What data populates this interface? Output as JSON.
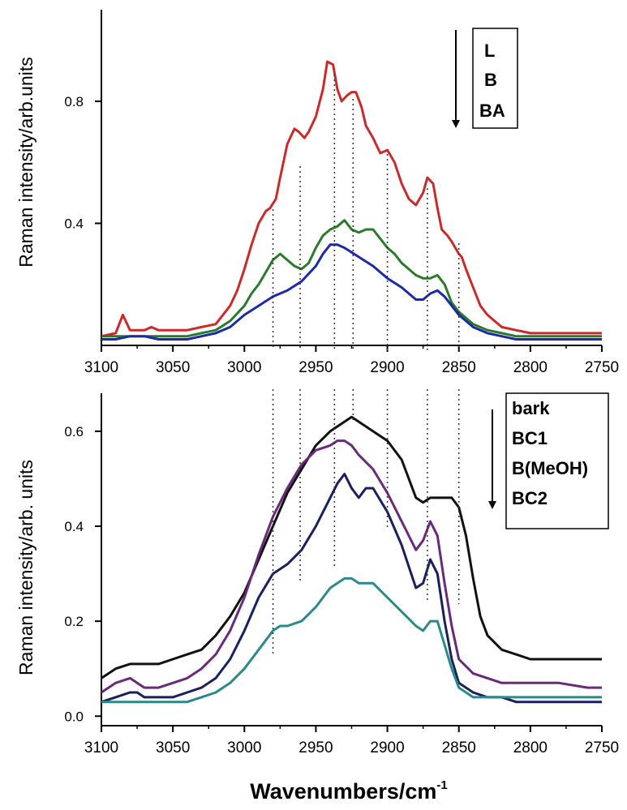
{
  "xlabel": "Wavenumbers/cm",
  "xlabel_sup": "-1",
  "chart_data": [
    {
      "type": "line",
      "ylabel": "Raman intensity/arb.units",
      "xlim": [
        3100,
        2750
      ],
      "ylim": [
        0,
        1.1
      ],
      "xticks": [
        3100,
        3050,
        3000,
        2950,
        2900,
        2850,
        2800,
        2750
      ],
      "yticks": [
        0.4,
        0.8
      ],
      "ytick_labels": [
        "0.4",
        "0.8"
      ],
      "reference_lines": [
        2980,
        2961,
        2937,
        2924,
        2900,
        2872,
        2850
      ],
      "legend": [
        "L",
        "B",
        "BA"
      ],
      "legend_placement": "top-right",
      "series": [
        {
          "name": "L",
          "color": "#cc2a2a",
          "x": [
            3100,
            3090,
            3085,
            3080,
            3075,
            3070,
            3065,
            3060,
            3050,
            3040,
            3030,
            3020,
            3010,
            3005,
            3000,
            2995,
            2990,
            2985,
            2982,
            2978,
            2975,
            2970,
            2965,
            2962,
            2958,
            2955,
            2950,
            2945,
            2942,
            2938,
            2935,
            2932,
            2928,
            2925,
            2922,
            2918,
            2915,
            2910,
            2905,
            2900,
            2895,
            2890,
            2885,
            2880,
            2875,
            2872,
            2868,
            2865,
            2862,
            2858,
            2855,
            2850,
            2848,
            2845,
            2840,
            2835,
            2830,
            2825,
            2820,
            2810,
            2800,
            2790,
            2780,
            2770,
            2760,
            2750
          ],
          "y": [
            0.03,
            0.04,
            0.1,
            0.05,
            0.05,
            0.05,
            0.06,
            0.05,
            0.05,
            0.05,
            0.06,
            0.07,
            0.13,
            0.18,
            0.25,
            0.33,
            0.4,
            0.44,
            0.45,
            0.48,
            0.55,
            0.66,
            0.71,
            0.7,
            0.68,
            0.7,
            0.75,
            0.84,
            0.93,
            0.92,
            0.84,
            0.8,
            0.82,
            0.83,
            0.83,
            0.78,
            0.72,
            0.68,
            0.63,
            0.64,
            0.6,
            0.53,
            0.48,
            0.46,
            0.5,
            0.55,
            0.53,
            0.45,
            0.38,
            0.36,
            0.34,
            0.3,
            0.29,
            0.25,
            0.19,
            0.13,
            0.1,
            0.08,
            0.06,
            0.05,
            0.04,
            0.04,
            0.04,
            0.04,
            0.04,
            0.04
          ]
        },
        {
          "name": "B",
          "color": "#2a7a2a",
          "x": [
            3100,
            3090,
            3080,
            3070,
            3060,
            3050,
            3040,
            3030,
            3020,
            3010,
            3000,
            2995,
            2990,
            2985,
            2980,
            2975,
            2970,
            2965,
            2960,
            2955,
            2950,
            2945,
            2940,
            2935,
            2930,
            2925,
            2920,
            2915,
            2910,
            2905,
            2900,
            2895,
            2890,
            2885,
            2880,
            2875,
            2870,
            2865,
            2860,
            2855,
            2850,
            2840,
            2830,
            2820,
            2810,
            2800,
            2780,
            2760,
            2750
          ],
          "y": [
            0.03,
            0.03,
            0.03,
            0.03,
            0.03,
            0.03,
            0.03,
            0.04,
            0.05,
            0.08,
            0.13,
            0.17,
            0.2,
            0.24,
            0.28,
            0.3,
            0.28,
            0.26,
            0.25,
            0.27,
            0.32,
            0.36,
            0.38,
            0.39,
            0.41,
            0.38,
            0.37,
            0.38,
            0.38,
            0.35,
            0.32,
            0.3,
            0.27,
            0.25,
            0.23,
            0.22,
            0.22,
            0.23,
            0.2,
            0.14,
            0.11,
            0.07,
            0.05,
            0.04,
            0.03,
            0.03,
            0.03,
            0.03,
            0.03
          ]
        },
        {
          "name": "BA",
          "color": "#1c2aa8",
          "x": [
            3100,
            3090,
            3080,
            3070,
            3060,
            3050,
            3040,
            3030,
            3020,
            3010,
            3000,
            2990,
            2980,
            2970,
            2960,
            2950,
            2945,
            2940,
            2935,
            2930,
            2920,
            2910,
            2900,
            2890,
            2885,
            2880,
            2875,
            2870,
            2865,
            2860,
            2855,
            2850,
            2840,
            2830,
            2820,
            2810,
            2800,
            2780,
            2760,
            2750
          ],
          "y": [
            0.02,
            0.02,
            0.03,
            0.03,
            0.02,
            0.02,
            0.02,
            0.03,
            0.04,
            0.06,
            0.1,
            0.13,
            0.16,
            0.18,
            0.21,
            0.26,
            0.3,
            0.33,
            0.33,
            0.32,
            0.29,
            0.26,
            0.22,
            0.19,
            0.17,
            0.15,
            0.15,
            0.17,
            0.18,
            0.16,
            0.13,
            0.1,
            0.06,
            0.04,
            0.03,
            0.02,
            0.02,
            0.02,
            0.02,
            0.02
          ]
        }
      ]
    },
    {
      "type": "line",
      "ylabel": "Raman intensity/arb. units",
      "xlim": [
        3100,
        2750
      ],
      "ylim": [
        -0.02,
        0.68
      ],
      "xticks": [
        3100,
        3050,
        3000,
        2950,
        2900,
        2850,
        2800,
        2750
      ],
      "yticks": [
        0.0,
        0.2,
        0.4,
        0.6
      ],
      "ytick_labels": [
        "0.0",
        "0.2",
        "0.4",
        "0.6"
      ],
      "reference_lines": [
        2980,
        2961,
        2937,
        2924,
        2900,
        2872,
        2850
      ],
      "legend": [
        "bark",
        "BC1",
        "B(MeOH)",
        "BC2"
      ],
      "legend_placement": "top-right",
      "series": [
        {
          "name": "bark",
          "color": "#111111",
          "x": [
            3100,
            3090,
            3080,
            3070,
            3060,
            3050,
            3040,
            3030,
            3020,
            3010,
            3000,
            2990,
            2980,
            2970,
            2960,
            2950,
            2940,
            2930,
            2925,
            2920,
            2910,
            2900,
            2890,
            2885,
            2880,
            2875,
            2870,
            2865,
            2860,
            2855,
            2850,
            2845,
            2840,
            2835,
            2830,
            2820,
            2810,
            2800,
            2790,
            2780,
            2770,
            2760,
            2750
          ],
          "y": [
            0.08,
            0.1,
            0.11,
            0.11,
            0.11,
            0.12,
            0.13,
            0.14,
            0.17,
            0.21,
            0.26,
            0.33,
            0.4,
            0.47,
            0.52,
            0.57,
            0.6,
            0.62,
            0.63,
            0.62,
            0.6,
            0.58,
            0.54,
            0.5,
            0.46,
            0.45,
            0.46,
            0.46,
            0.46,
            0.46,
            0.44,
            0.38,
            0.29,
            0.21,
            0.17,
            0.14,
            0.13,
            0.12,
            0.12,
            0.12,
            0.12,
            0.12,
            0.12
          ]
        },
        {
          "name": "BC1",
          "color": "#6a2a7a",
          "x": [
            3100,
            3090,
            3080,
            3075,
            3070,
            3060,
            3050,
            3040,
            3030,
            3020,
            3010,
            3000,
            2990,
            2980,
            2970,
            2960,
            2950,
            2940,
            2935,
            2930,
            2925,
            2920,
            2910,
            2900,
            2890,
            2880,
            2875,
            2870,
            2865,
            2860,
            2855,
            2850,
            2840,
            2830,
            2820,
            2810,
            2800,
            2780,
            2760,
            2750
          ],
          "y": [
            0.05,
            0.07,
            0.08,
            0.07,
            0.06,
            0.06,
            0.07,
            0.08,
            0.1,
            0.13,
            0.18,
            0.25,
            0.34,
            0.42,
            0.48,
            0.53,
            0.56,
            0.57,
            0.58,
            0.58,
            0.57,
            0.55,
            0.52,
            0.47,
            0.41,
            0.35,
            0.37,
            0.41,
            0.38,
            0.28,
            0.19,
            0.12,
            0.09,
            0.08,
            0.07,
            0.07,
            0.07,
            0.07,
            0.06,
            0.06
          ]
        },
        {
          "name": "B(MeOH)",
          "color": "#1a1f5e",
          "x": [
            3100,
            3090,
            3080,
            3075,
            3070,
            3060,
            3050,
            3040,
            3030,
            3020,
            3010,
            3000,
            2990,
            2980,
            2975,
            2970,
            2960,
            2950,
            2940,
            2935,
            2930,
            2925,
            2920,
            2915,
            2910,
            2900,
            2890,
            2880,
            2875,
            2870,
            2865,
            2860,
            2855,
            2850,
            2840,
            2830,
            2820,
            2810,
            2800,
            2780,
            2760,
            2750
          ],
          "y": [
            0.03,
            0.04,
            0.05,
            0.05,
            0.04,
            0.04,
            0.04,
            0.05,
            0.06,
            0.08,
            0.12,
            0.18,
            0.25,
            0.3,
            0.31,
            0.32,
            0.35,
            0.4,
            0.46,
            0.49,
            0.51,
            0.48,
            0.46,
            0.48,
            0.48,
            0.43,
            0.36,
            0.27,
            0.28,
            0.33,
            0.3,
            0.2,
            0.12,
            0.07,
            0.05,
            0.04,
            0.04,
            0.03,
            0.03,
            0.03,
            0.03,
            0.03
          ]
        },
        {
          "name": "BC2",
          "color": "#2a8a8a",
          "x": [
            3100,
            3090,
            3080,
            3070,
            3060,
            3050,
            3040,
            3030,
            3020,
            3010,
            3000,
            2990,
            2980,
            2975,
            2970,
            2960,
            2950,
            2940,
            2935,
            2930,
            2925,
            2920,
            2915,
            2910,
            2900,
            2890,
            2880,
            2875,
            2870,
            2865,
            2860,
            2855,
            2850,
            2840,
            2830,
            2820,
            2800,
            2780,
            2760,
            2750
          ],
          "y": [
            0.03,
            0.03,
            0.03,
            0.03,
            0.03,
            0.03,
            0.03,
            0.04,
            0.05,
            0.07,
            0.1,
            0.14,
            0.18,
            0.19,
            0.19,
            0.2,
            0.23,
            0.27,
            0.28,
            0.29,
            0.29,
            0.28,
            0.28,
            0.28,
            0.25,
            0.22,
            0.19,
            0.18,
            0.2,
            0.2,
            0.15,
            0.1,
            0.06,
            0.04,
            0.04,
            0.04,
            0.04,
            0.04,
            0.04,
            0.04
          ]
        }
      ]
    }
  ]
}
